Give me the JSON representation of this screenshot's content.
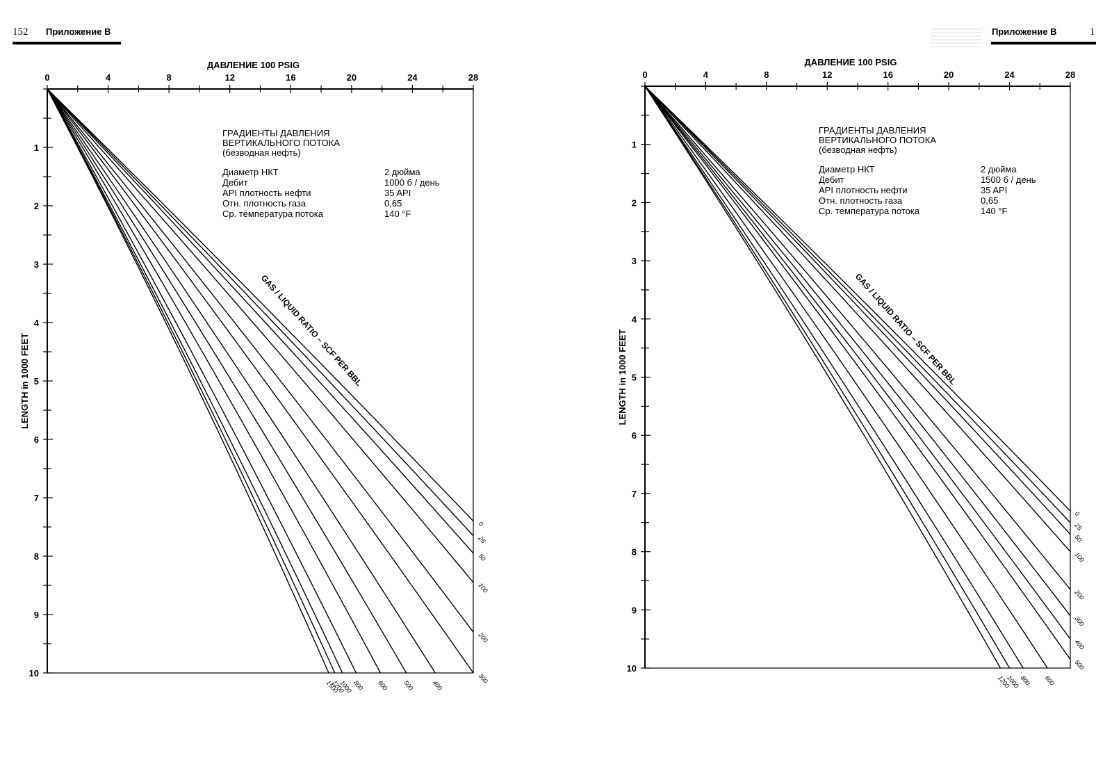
{
  "header": {
    "left_page_number": "152",
    "left_section": "Приложение В",
    "right_section": "Приложение В",
    "right_page_number": "1"
  },
  "chart_data": [
    {
      "type": "line",
      "title_lines": [
        "ГРАДИЕНТЫ ДАВЛЕНИЯ",
        "ВЕРТИКАЛЬНОГО ПОТОКА",
        "(безводная нефть)"
      ],
      "xlabel": "ДАВЛЕНИЕ 100 PSIG",
      "ylabel": "LENGTH in 1000 FEET",
      "xlim": [
        0,
        28
      ],
      "ylim": [
        0,
        10
      ],
      "x_ticks": [
        "0",
        "4",
        "8",
        "12",
        "16",
        "20",
        "24",
        "28"
      ],
      "y_ticks": [
        "1",
        "2",
        "3",
        "4",
        "5",
        "6",
        "7",
        "8",
        "9",
        "10"
      ],
      "params": [
        {
          "label": "Диаметр НКТ",
          "value": "2 дюйма"
        },
        {
          "label": "Дебит",
          "value": "1000 б / день"
        },
        {
          "label": "API плотность нефти",
          "value": "35 API"
        },
        {
          "label": "Отн. плотность газа",
          "value": "0,65"
        },
        {
          "label": "Ср. температура потока",
          "value": "140 °F"
        }
      ],
      "curve_annotation": "GAS / LIQUID RATIO – SCF PER BBL",
      "series": [
        {
          "name": "0",
          "points": [
            [
              0,
              0
            ],
            [
              28,
              7.4
            ]
          ]
        },
        {
          "name": "25",
          "points": [
            [
              0,
              0
            ],
            [
              28,
              7.65
            ]
          ]
        },
        {
          "name": "50",
          "points": [
            [
              0,
              0
            ],
            [
              28,
              7.95
            ]
          ]
        },
        {
          "name": "100",
          "points": [
            [
              0,
              0
            ],
            [
              28,
              8.45
            ]
          ]
        },
        {
          "name": "200",
          "points": [
            [
              0,
              0
            ],
            [
              28,
              9.3
            ]
          ]
        },
        {
          "name": "300",
          "points": [
            [
              0,
              0
            ],
            [
              28,
              10
            ]
          ]
        },
        {
          "name": "400",
          "points": [
            [
              0,
              0
            ],
            [
              25.5,
              10
            ]
          ]
        },
        {
          "name": "500",
          "points": [
            [
              0,
              0
            ],
            [
              23.6,
              10
            ]
          ]
        },
        {
          "name": "600",
          "points": [
            [
              0,
              0
            ],
            [
              21.9,
              10
            ]
          ]
        },
        {
          "name": "800",
          "points": [
            [
              0,
              0
            ],
            [
              20.3,
              10
            ]
          ]
        },
        {
          "name": "1000",
          "points": [
            [
              0,
              0
            ],
            [
              19.4,
              10
            ]
          ]
        },
        {
          "name": "1200",
          "points": [
            [
              0,
              0
            ],
            [
              18.9,
              10
            ]
          ]
        },
        {
          "name": "1500",
          "points": [
            [
              0,
              0
            ],
            [
              18.5,
              10
            ]
          ]
        }
      ]
    },
    {
      "type": "line",
      "title_lines": [
        "ГРАДИЕНТЫ ДАВЛЕНИЯ",
        "ВЕРТИКАЛЬНОГО ПОТОКА",
        "(безводная нефть)"
      ],
      "xlabel": "ДАВЛЕНИЕ 100 PSIG",
      "ylabel": "LENGTH in 1000 FEET",
      "xlim": [
        0,
        28
      ],
      "ylim": [
        0,
        10
      ],
      "x_ticks": [
        "0",
        "4",
        "8",
        "12",
        "16",
        "20",
        "24",
        "28"
      ],
      "y_ticks": [
        "1",
        "2",
        "3",
        "4",
        "5",
        "6",
        "7",
        "8",
        "9",
        "10"
      ],
      "params": [
        {
          "label": "Диаметр НКТ",
          "value": "2 дюйма"
        },
        {
          "label": "Дебит",
          "value": "1500 б / день"
        },
        {
          "label": "API плотность нефти",
          "value": "35 API"
        },
        {
          "label": "Отн. плотность газа",
          "value": "0,65"
        },
        {
          "label": "Ср. температура потока",
          "value": "140 °F"
        }
      ],
      "curve_annotation": "GAS / LIQUID RATIO – SCF PER BBL",
      "series": [
        {
          "name": "0",
          "points": [
            [
              0,
              0
            ],
            [
              28,
              7.3
            ]
          ]
        },
        {
          "name": "25",
          "points": [
            [
              0,
              0
            ],
            [
              28,
              7.5
            ]
          ]
        },
        {
          "name": "50",
          "points": [
            [
              0,
              0
            ],
            [
              28,
              7.7
            ]
          ]
        },
        {
          "name": "100",
          "points": [
            [
              0,
              0
            ],
            [
              28,
              8.0
            ]
          ]
        },
        {
          "name": "200",
          "points": [
            [
              0,
              0
            ],
            [
              28,
              8.65
            ]
          ]
        },
        {
          "name": "300",
          "points": [
            [
              0,
              0
            ],
            [
              28,
              9.1
            ]
          ]
        },
        {
          "name": "400",
          "points": [
            [
              0,
              0
            ],
            [
              28,
              9.5
            ]
          ]
        },
        {
          "name": "500",
          "points": [
            [
              0,
              0
            ],
            [
              28,
              9.85
            ]
          ]
        },
        {
          "name": "600",
          "points": [
            [
              0,
              0
            ],
            [
              26.5,
              10
            ]
          ]
        },
        {
          "name": "800",
          "points": [
            [
              0,
              0
            ],
            [
              24.9,
              10
            ]
          ]
        },
        {
          "name": "1000",
          "points": [
            [
              0,
              0
            ],
            [
              24.0,
              10
            ]
          ]
        },
        {
          "name": "1200",
          "points": [
            [
              0,
              0
            ],
            [
              23.4,
              10
            ]
          ]
        }
      ]
    }
  ]
}
